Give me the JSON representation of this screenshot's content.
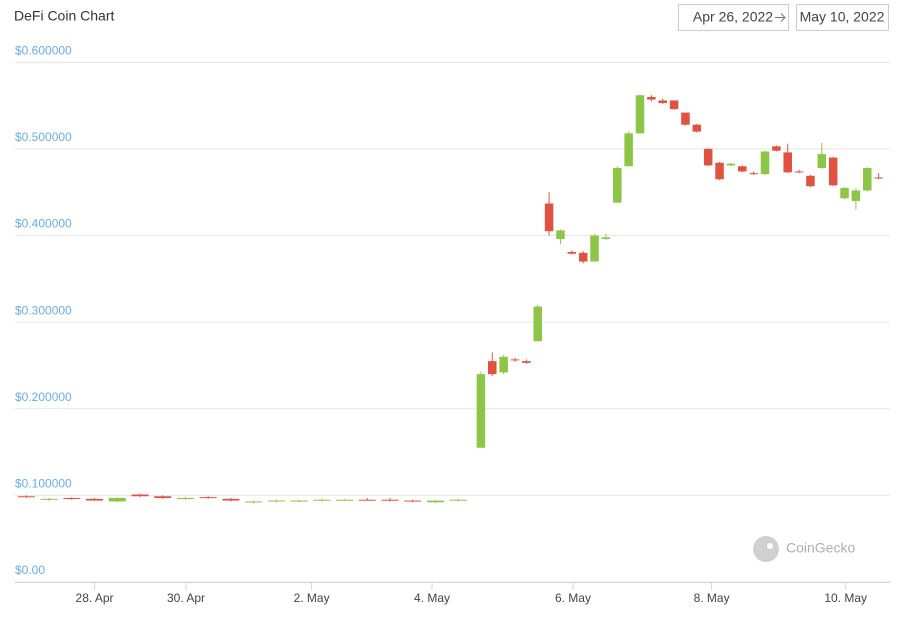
{
  "header": {
    "start_date": "Apr 26, 2022",
    "end_date": "May 10, 2022"
  },
  "watermark": "CoinGecko",
  "chart_data": {
    "type": "candlestick",
    "title": "DeFi Coin Chart",
    "up_color": "#8dc647",
    "down_color": "#e15241",
    "grid": true,
    "xlim": [
      0,
      77
    ],
    "xticks": [
      {
        "value": 7.0,
        "label": "28. Apr"
      },
      {
        "value": 15.05,
        "label": "30. Apr"
      },
      {
        "value": 26.1,
        "label": "2. May"
      },
      {
        "value": 36.7,
        "label": "4. May"
      },
      {
        "value": 49.1,
        "label": "6. May"
      },
      {
        "value": 61.3,
        "label": "8. May"
      },
      {
        "value": 73.1,
        "label": "10. May"
      }
    ],
    "ylim": [
      0,
      0.62
    ],
    "yticks": [
      {
        "value": 0,
        "label": "$0.00"
      },
      {
        "value": 0.1,
        "label": "$0.100000"
      },
      {
        "value": 0.2,
        "label": "$0.200000"
      },
      {
        "value": 0.3,
        "label": "$0.300000"
      },
      {
        "value": 0.4,
        "label": "$0.400000"
      },
      {
        "value": 0.5,
        "label": "$0.500000"
      },
      {
        "value": 0.6,
        "label": "$0.600000"
      }
    ],
    "x": [
      1,
      3,
      5,
      7,
      9,
      11,
      13,
      15,
      17,
      19,
      21,
      23,
      25,
      27,
      29,
      31,
      33,
      35,
      37,
      39,
      41,
      42,
      43,
      44,
      45,
      46,
      47,
      48,
      49,
      50,
      51,
      52,
      53,
      54,
      55,
      56,
      57,
      58,
      59,
      60,
      61,
      62,
      63,
      64,
      65,
      66,
      67,
      68,
      69,
      70,
      71,
      72,
      73,
      74,
      75,
      76
    ],
    "open": [
      0.099,
      0.095,
      0.097,
      0.096,
      0.093,
      0.101,
      0.099,
      0.096,
      0.098,
      0.096,
      0.092,
      0.093,
      0.093,
      0.094,
      0.095,
      0.095,
      0.095,
      0.094,
      0.092,
      0.094,
      0.155,
      0.255,
      0.242,
      0.257,
      0.255,
      0.278,
      0.437,
      0.396,
      0.381,
      0.38,
      0.37,
      0.396,
      0.438,
      0.48,
      0.518,
      0.56,
      0.556,
      0.556,
      0.542,
      0.528,
      0.5,
      0.484,
      0.481,
      0.48,
      0.472,
      0.471,
      0.503,
      0.496,
      0.474,
      0.469,
      0.478,
      0.49,
      0.443,
      0.44,
      0.452,
      0.467
    ],
    "high": [
      0.1,
      0.097,
      0.098,
      0.097,
      0.098,
      0.102,
      0.1,
      0.098,
      0.099,
      0.097,
      0.094,
      0.095,
      0.095,
      0.096,
      0.096,
      0.097,
      0.097,
      0.095,
      0.094,
      0.096,
      0.243,
      0.265,
      0.262,
      0.259,
      0.257,
      0.32,
      0.45,
      0.407,
      0.383,
      0.382,
      0.402,
      0.402,
      0.48,
      0.52,
      0.563,
      0.562,
      0.558,
      0.556,
      0.542,
      0.529,
      0.501,
      0.485,
      0.484,
      0.481,
      0.474,
      0.498,
      0.504,
      0.506,
      0.476,
      0.47,
      0.507,
      0.491,
      0.456,
      0.455,
      0.479,
      0.472
    ],
    "low": [
      0.097,
      0.094,
      0.095,
      0.094,
      0.092,
      0.098,
      0.096,
      0.095,
      0.096,
      0.093,
      0.091,
      0.092,
      0.092,
      0.093,
      0.094,
      0.094,
      0.093,
      0.092,
      0.091,
      0.093,
      0.155,
      0.238,
      0.24,
      0.254,
      0.252,
      0.278,
      0.4,
      0.39,
      0.378,
      0.368,
      0.37,
      0.395,
      0.438,
      0.48,
      0.518,
      0.555,
      0.552,
      0.545,
      0.527,
      0.519,
      0.48,
      0.464,
      0.48,
      0.473,
      0.47,
      0.47,
      0.497,
      0.472,
      0.472,
      0.456,
      0.477,
      0.457,
      0.442,
      0.43,
      0.451,
      0.465
    ],
    "close": [
      0.098,
      0.096,
      0.096,
      0.094,
      0.097,
      0.099,
      0.097,
      0.097,
      0.097,
      0.094,
      0.093,
      0.094,
      0.094,
      0.095,
      0.095,
      0.094,
      0.094,
      0.093,
      0.094,
      0.095,
      0.24,
      0.24,
      0.26,
      0.256,
      0.253,
      0.318,
      0.405,
      0.406,
      0.379,
      0.37,
      0.4,
      0.398,
      0.478,
      0.518,
      0.562,
      0.557,
      0.553,
      0.546,
      0.528,
      0.52,
      0.481,
      0.465,
      0.483,
      0.474,
      0.471,
      0.497,
      0.498,
      0.473,
      0.473,
      0.457,
      0.494,
      0.458,
      0.455,
      0.452,
      0.478,
      0.466
    ]
  }
}
